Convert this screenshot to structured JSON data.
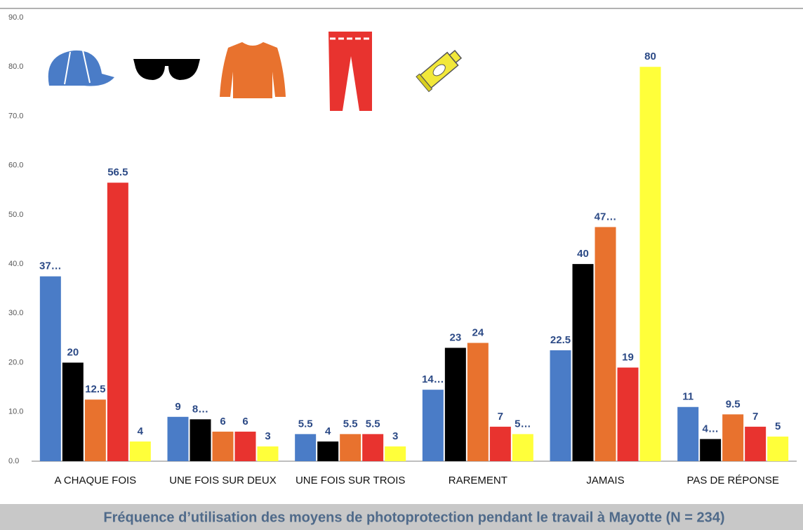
{
  "chart_data": {
    "type": "bar",
    "title": "Fréquence d’utilisation des moyens de photoprotection pendant le travail à Mayotte  (N = 234)",
    "categories": [
      "A CHAQUE FOIS",
      "UNE FOIS SUR DEUX",
      "UNE FOIS SUR TROIS",
      "RAREMENT",
      "JAMAIS",
      "PAS DE RÉPONSE"
    ],
    "series": [
      {
        "color": "#4a7cc7",
        "values": [
          37.5,
          9,
          5.5,
          14.5,
          22.5,
          11
        ],
        "value_labels": [
          "37…",
          "9",
          "5.5",
          "14…",
          "22.5",
          "11"
        ]
      },
      {
        "color": "#000000",
        "values": [
          20,
          8.5,
          4,
          23,
          40,
          4.5
        ],
        "value_labels": [
          "20",
          "8…",
          "4",
          "23",
          "40",
          "4…"
        ]
      },
      {
        "color": "#e8722e",
        "values": [
          12.5,
          6,
          5.5,
          24,
          47.5,
          9.5
        ],
        "value_labels": [
          "12.5",
          "6",
          "5.5",
          "24",
          "47…",
          "9.5"
        ]
      },
      {
        "color": "#e8332f",
        "values": [
          56.5,
          6,
          5.5,
          7,
          19,
          7
        ],
        "value_labels": [
          "56.5",
          "6",
          "5.5",
          "7",
          "19",
          "7"
        ]
      },
      {
        "color": "#ffff3a",
        "values": [
          4,
          3,
          3,
          5.5,
          80,
          5
        ],
        "value_labels": [
          "4",
          "3",
          "3",
          "5…",
          "80",
          "5"
        ]
      }
    ],
    "ylim": [
      0,
      90
    ],
    "yticks": [
      {
        "value": 0,
        "label": "0.0"
      },
      {
        "value": 10,
        "label": "10.0"
      },
      {
        "value": 20,
        "label": "20.0"
      },
      {
        "value": 30,
        "label": "30.0"
      },
      {
        "value": 40,
        "label": "40.0"
      },
      {
        "value": 50,
        "label": "50.0"
      },
      {
        "value": 60,
        "label": "60.0"
      },
      {
        "value": 70,
        "label": "70.0"
      },
      {
        "value": 80,
        "label": "80.0"
      },
      {
        "value": 90,
        "label": "90.0"
      }
    ],
    "grid": false
  }
}
